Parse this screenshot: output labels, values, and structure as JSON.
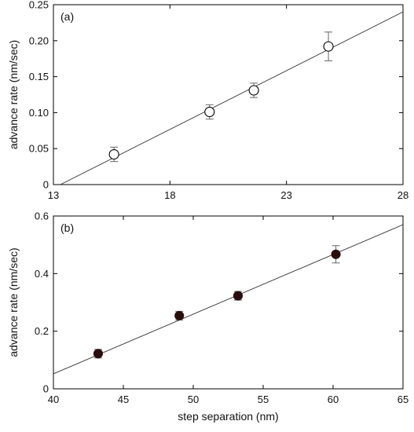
{
  "chart_data": [
    {
      "type": "scatter",
      "panel_label": "(a)",
      "title": "",
      "xlabel": "",
      "ylabel": "advance rate (nm/sec)",
      "xlim": [
        13,
        28
      ],
      "ylim": [
        0,
        0.25
      ],
      "x_ticks": [
        "13",
        "18",
        "23",
        "28"
      ],
      "y_ticks": [
        "0",
        "0.05",
        "0.10",
        "0.15",
        "0.20",
        "0.25"
      ],
      "marker": "open-circle",
      "series": [
        {
          "x": [
            15.6,
            19.7,
            21.6,
            24.8
          ],
          "y": [
            0.042,
            0.101,
            0.131,
            0.192
          ],
          "yerr": [
            0.01,
            0.01,
            0.01,
            0.02
          ]
        }
      ],
      "fit_line": {
        "x": [
          13.3,
          28
        ],
        "y": [
          0,
          0.24
        ]
      },
      "grid": false,
      "legend": "none"
    },
    {
      "type": "scatter",
      "panel_label": "(b)",
      "title": "",
      "xlabel": "step separation (nm)",
      "ylabel": "advance rate (nm/sec)",
      "xlim": [
        40,
        65
      ],
      "ylim": [
        0,
        0.6
      ],
      "x_ticks": [
        "40",
        "45",
        "50",
        "55",
        "60",
        "65"
      ],
      "y_ticks": [
        "0",
        "0.2",
        "0.4",
        "0.6"
      ],
      "marker": "filled-circle",
      "marker_color": "#2a0e0e",
      "series": [
        {
          "x": [
            43.2,
            49.0,
            53.2,
            60.2
          ],
          "y": [
            0.122,
            0.254,
            0.323,
            0.467
          ],
          "yerr": [
            0.015,
            0.015,
            0.015,
            0.03
          ]
        }
      ],
      "fit_line": {
        "x": [
          40,
          65
        ],
        "y": [
          0.052,
          0.57
        ]
      },
      "grid": false,
      "legend": "none"
    }
  ]
}
